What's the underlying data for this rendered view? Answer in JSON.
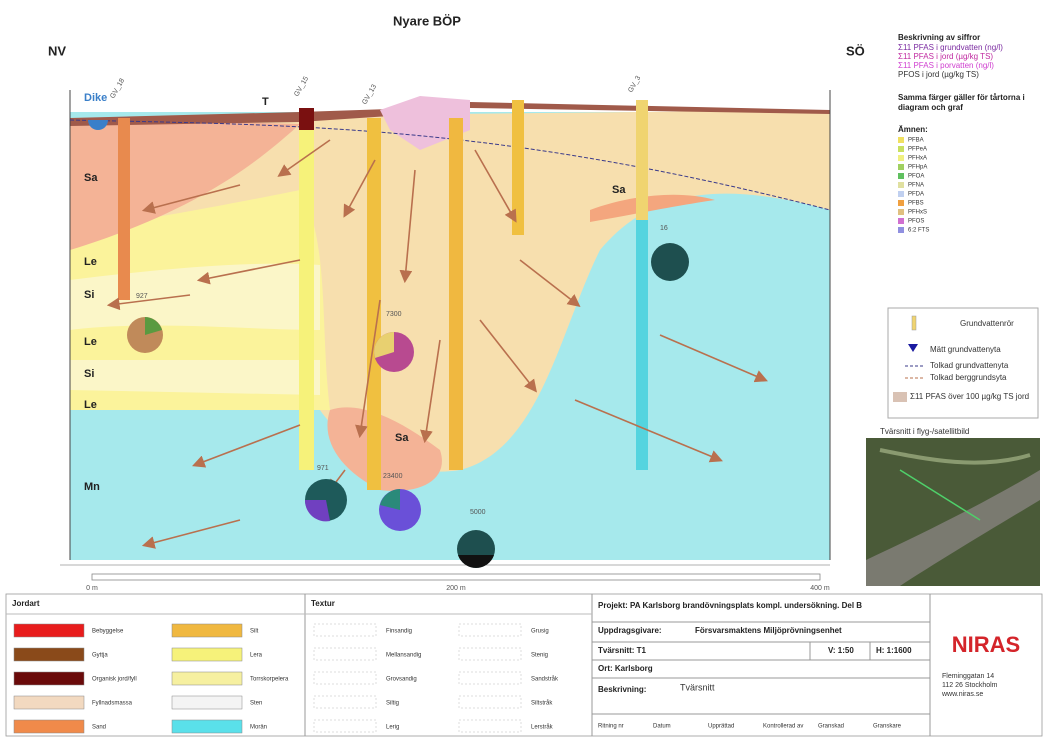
{
  "header": {
    "title": "Nyare BÖP",
    "left_direction": "NV",
    "right_direction": "SÖ"
  },
  "section": {
    "dike": "Dike",
    "layers": [
      "T",
      "Sa",
      "Le",
      "Si",
      "Le",
      "Si",
      "Le",
      "Mn",
      "Sa",
      "Sa"
    ],
    "boreholes": [
      "GV_18",
      "GV_15",
      "GV_13",
      "GV_3"
    ],
    "values": [
      927,
      7300,
      971,
      23400,
      5000,
      16
    ]
  },
  "scale": [
    "0 m",
    "200 m",
    "400 m"
  ],
  "legend_right": {
    "heading": "Beskrivning av siffror",
    "lines": [
      "Σ11 PFAS i grundvatten (ng/l)",
      "Σ11 PFAS i jord (µg/kg TS)",
      "Σ11 PFAS i porvatten (ng/l)",
      "PFOS i jord (µg/kg TS)"
    ],
    "note": [
      "Samma färger gäller för tårtorna i",
      "diagram och graf"
    ],
    "substances_heading": "Ämnen:",
    "substances": [
      "PFBA",
      "PFPeA",
      "PFHxA",
      "PFHpA",
      "PFOA",
      "PFNA",
      "PFDA",
      "PFBS",
      "PFHxS",
      "PFOS",
      "6:2 FTS"
    ],
    "items": [
      "Grundvattenrör",
      "Mätt grundvattenyta",
      "Tolkad grundvattenyta",
      "Tolkad berggrundsyta",
      "Σ11 PFAS över 100 µg/kg TS jord"
    ]
  },
  "map_caption": "Tvärsnitt i flyg-/satellitbild",
  "soil_legend": {
    "heading": "Jordart",
    "items": [
      "Bebyggelse",
      "Gyttja",
      "Organisk jord/fyll",
      "Fyllnadsmassa",
      "Sand",
      "Silt",
      "Lera",
      "Torrskorpelera",
      "Sten",
      "Morän"
    ]
  },
  "texture_legend": {
    "heading": "Textur",
    "items": [
      "Finsandig",
      "Mellansandig",
      "Grovsandig",
      "Siltig",
      "Lerig",
      "Grusig",
      "Stenig",
      "Sandstråk",
      "Siltstråk",
      "Lerstråk"
    ]
  },
  "title_block": {
    "project": "Projekt:  PA Karlsborg brandövningsplats kompl. undersökning. Del B",
    "client_label": "Uppdragsgivare:",
    "client": "Försvarsmaktens Miljöprövningsenhet",
    "section": "Tvärsnitt:  T1",
    "v_scale": "V: 1:50",
    "h_scale": "H: 1:1600",
    "place": "Ort:    Karlsborg",
    "description_label": "Beskrivning:",
    "description": "Tvärsnitt",
    "footer": [
      "Ritning nr",
      "Datum",
      "Upprättad",
      "Kontrollerad av",
      "Granskad",
      "Granskare"
    ]
  },
  "logo": "NIRAS",
  "address": [
    "Fleminggatan 14",
    "112 26 Stockholm",
    "www.niras.se"
  ]
}
